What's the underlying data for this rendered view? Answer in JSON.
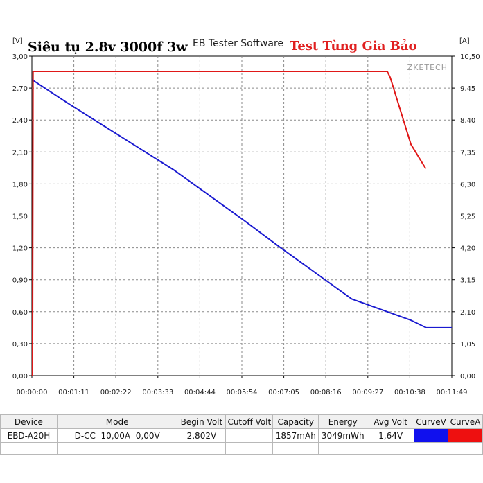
{
  "chart_data": {
    "type": "line",
    "title": "Siêu tụ 2.8v 3000f 3w",
    "software_label": "EB Tester Software",
    "annotation": "Test Tùng Gia Bảo",
    "watermark": "ZKETECH",
    "left_axis_unit": "[V]",
    "right_axis_unit": "[A]",
    "y_left_ticks": [
      "3,00",
      "2,70",
      "2,40",
      "2,10",
      "1,80",
      "1,50",
      "1,20",
      "0,90",
      "0,60",
      "0,30",
      "0,00"
    ],
    "y_right_ticks": [
      "10,50",
      "9,45",
      "8,40",
      "7,35",
      "6,30",
      "5,25",
      "4,20",
      "3,15",
      "2,10",
      "1,05",
      "0,00"
    ],
    "x_ticks": [
      "00:00:00",
      "00:01:11",
      "00:02:22",
      "00:03:33",
      "00:04:44",
      "00:05:54",
      "00:07:05",
      "00:08:16",
      "00:09:27",
      "00:10:38",
      "00:11:49"
    ],
    "x_range_seconds": [
      0,
      709
    ],
    "y_left_range": [
      0,
      3.0
    ],
    "y_right_range": [
      0,
      10.5
    ],
    "grid": true,
    "series": [
      {
        "axis": "left",
        "color": "#1a1ad0",
        "x": [
          0,
          60,
          120,
          180,
          240,
          300,
          360,
          420,
          480,
          540,
          600,
          640,
          666,
          709
        ],
        "y": [
          2.78,
          2.56,
          2.35,
          2.14,
          1.93,
          1.69,
          1.45,
          1.2,
          0.96,
          0.72,
          0.6,
          0.52,
          0.45,
          0.45
        ]
      },
      {
        "axis": "right",
        "color": "#e01818",
        "x": [
          0,
          1,
          2,
          600,
          605,
          640,
          665
        ],
        "y": [
          0,
          0,
          10.0,
          10.0,
          9.8,
          7.6,
          6.8
        ]
      }
    ]
  },
  "table": {
    "headers": [
      "Device",
      "Mode",
      "Begin Volt",
      "Cutoff Volt",
      "Capacity",
      "Energy",
      "Avg Volt",
      "CurveV",
      "CurveA"
    ],
    "row": [
      "EBD-A20H",
      "D-CC  10,00A  0,00V",
      "2,802V",
      "",
      "1857mAh",
      "3049mWh",
      "1,64V",
      "",
      ""
    ],
    "curve_colors": [
      "#1010ee",
      "#ee1010"
    ]
  }
}
